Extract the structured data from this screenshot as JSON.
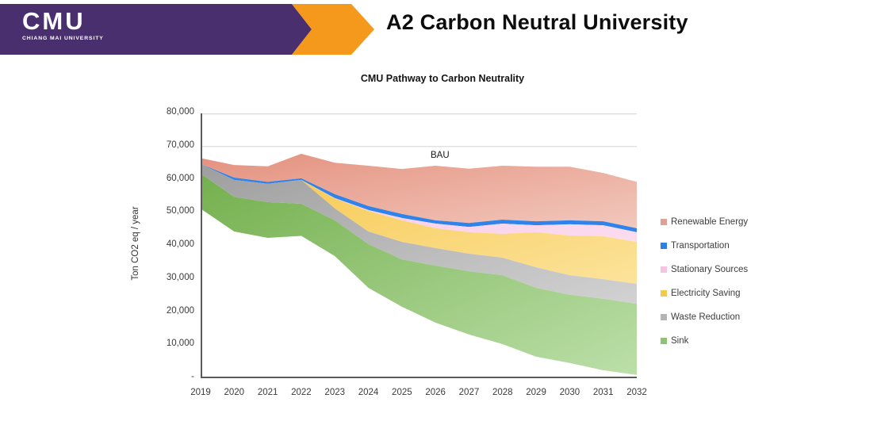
{
  "header": {
    "logo_text": "CMU",
    "logo_subtext": "CHIANG MAI UNIVERSITY",
    "page_title": "A2 Carbon Neutral University",
    "brand_purple": "#4A2F6E",
    "brand_orange": "#F5991D"
  },
  "chart_data": {
    "type": "area",
    "title": "CMU Pathway to Carbon Neutrality",
    "ylabel": "Ton CO2 eq / year",
    "annotation": "BAU",
    "legend_position": "right",
    "grid": "horizontal lines at 70,000 and 80,000 only",
    "x": [
      2019,
      2020,
      2021,
      2022,
      2023,
      2024,
      2025,
      2026,
      2027,
      2028,
      2029,
      2030,
      2031,
      2032
    ],
    "ylim": [
      0,
      80000
    ],
    "yticks": [
      {
        "label": "80,000",
        "value": 80000
      },
      {
        "label": "70,000",
        "value": 70000
      },
      {
        "label": "60,000",
        "value": 60000
      },
      {
        "label": "50,000",
        "value": 50000
      },
      {
        "label": "40,000",
        "value": 40000
      },
      {
        "label": "30,000",
        "value": 30000
      },
      {
        "label": "20,000",
        "value": 20000
      },
      {
        "label": "10,000",
        "value": 10000
      },
      {
        "label": "-",
        "value": 0
      }
    ],
    "gridline_values": [
      80000,
      70000
    ],
    "series": [
      {
        "name": "Renewable Energy",
        "legend_color": "#E0A093",
        "fill_from": "#E4917E",
        "fill_to": "#F2C8BD",
        "upper": [
          66500,
          64400,
          64000,
          67800,
          65100,
          64200,
          63200,
          64200,
          63300,
          64200,
          63900,
          63900,
          62000,
          59300
        ],
        "lower": [
          64700,
          60600,
          59300,
          60400,
          55600,
          52000,
          49600,
          47700,
          46900,
          47900,
          47400,
          47700,
          47400,
          45300
        ]
      },
      {
        "name": "Transportation",
        "legend_color": "#2F80E4",
        "fill_from": "#2F83EA",
        "fill_to": "#2F83EA",
        "upper": [
          64700,
          60600,
          59300,
          60400,
          55600,
          52000,
          49600,
          47700,
          46900,
          47900,
          47400,
          47700,
          47400,
          45300
        ],
        "lower": [
          64700,
          59900,
          58700,
          59900,
          54400,
          50800,
          48400,
          46700,
          45700,
          46700,
          46200,
          46500,
          46200,
          44100
        ]
      },
      {
        "name": "Stationary Sources",
        "legend_color": "#F7C3E2",
        "fill_from": "#F8C3E4",
        "fill_to": "#FBDCEF",
        "upper": [
          64700,
          59900,
          58700,
          59900,
          54400,
          50800,
          48400,
          46700,
          45700,
          46700,
          46200,
          46500,
          46200,
          44100
        ],
        "lower": [
          64700,
          59900,
          58700,
          59900,
          54300,
          50500,
          47700,
          45300,
          44100,
          43600,
          44100,
          43100,
          42900,
          41200
        ]
      },
      {
        "name": "Electricity Saving",
        "legend_color": "#F5C94E",
        "fill_from": "#F6C64A",
        "fill_to": "#FCE39B",
        "upper": [
          64700,
          59900,
          58700,
          59900,
          54300,
          50500,
          47700,
          45300,
          44100,
          43600,
          44100,
          43100,
          42900,
          41200
        ],
        "lower": [
          64700,
          59900,
          58700,
          59900,
          51300,
          44300,
          41200,
          39300,
          37600,
          36400,
          33500,
          31100,
          29900,
          28500
        ]
      },
      {
        "name": "Waste Reduction",
        "legend_color": "#B3B3B3",
        "fill_from": "#9E9E9E",
        "fill_to": "#D2D2D2",
        "upper": [
          64700,
          59900,
          58700,
          59900,
          51300,
          44300,
          41200,
          39300,
          37600,
          36400,
          33500,
          31100,
          29900,
          28500
        ],
        "lower": [
          61800,
          54800,
          53200,
          52700,
          47700,
          40500,
          35900,
          34000,
          32300,
          31100,
          27300,
          25200,
          24000,
          22500
        ]
      },
      {
        "name": "Sink",
        "legend_color": "#8CC474",
        "fill_from": "#74B04E",
        "fill_to": "#BCDFA9",
        "upper": [
          61800,
          54800,
          53200,
          52700,
          47700,
          40500,
          35900,
          34000,
          32300,
          31100,
          27300,
          25200,
          24000,
          22500
        ],
        "lower": [
          51200,
          44300,
          42400,
          43000,
          36900,
          27300,
          21600,
          16800,
          13200,
          10300,
          6500,
          4600,
          2400,
          1000
        ]
      }
    ]
  }
}
